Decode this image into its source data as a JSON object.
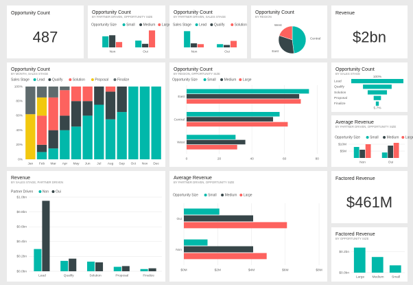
{
  "cards": [
    {
      "title": "Opportunity Count",
      "value": "487"
    },
    {
      "title": "Revenue",
      "value": "$2bn"
    },
    {
      "title": "Factored Revenue",
      "value": "$461M"
    }
  ],
  "chart_data": [
    {
      "type": "bar",
      "title": "Opportunity Count",
      "subtitle": "BY PARTNER DRIVEN, OPPORTUNITY SIZE",
      "legend_title": "Opportunity Size",
      "categories": [
        "Non",
        "Oui"
      ],
      "ylim": [
        0,
        100
      ],
      "series": [
        {
          "name": "Small",
          "color": "#01b8aa",
          "values": [
            62,
            38
          ]
        },
        {
          "name": "Medium",
          "color": "#374649",
          "values": [
            68,
            20
          ]
        },
        {
          "name": "Large",
          "color": "#fd625e",
          "values": [
            30,
            95
          ]
        }
      ]
    },
    {
      "type": "bar",
      "title": "Opportunity Count",
      "subtitle": "BY PARTNER DRIVEN, SALES STAGE",
      "legend_title": "Sales Stage",
      "categories": [
        "Non",
        "Oui"
      ],
      "ylim": [
        0,
        110
      ],
      "series": [
        {
          "name": "Lead",
          "color": "#01b8aa",
          "values": [
            100,
            20
          ]
        },
        {
          "name": "Qualify",
          "color": "#374649",
          "values": [
            25,
            15
          ]
        },
        {
          "name": "Solution",
          "color": "#fd625e",
          "values": [
            20,
            40
          ]
        }
      ]
    },
    {
      "type": "pie",
      "title": "Opportunity Count",
      "subtitle": "BY REGION",
      "categories": [
        "Central",
        "East",
        "West"
      ],
      "values": [
        48,
        32,
        20
      ],
      "colors": [
        "#01b8aa",
        "#374649",
        "#fd625e"
      ]
    },
    {
      "type": "stacked100",
      "title": "Opportunity Count",
      "subtitle": "BY MONTH, SALES STAGE",
      "legend_title": "Sales Stage",
      "categories": [
        "Jan",
        "Feb",
        "Mar",
        "Apr",
        "May",
        "Jun",
        "Jul",
        "Aug",
        "Sep",
        "Oct",
        "Nov",
        "Dec"
      ],
      "ylim": [
        0,
        100
      ],
      "grid": false,
      "yticks": [
        {
          "value": 0,
          "label": "0%"
        },
        {
          "value": 20,
          "label": "20%"
        },
        {
          "value": 40,
          "label": "40%"
        },
        {
          "value": 60,
          "label": "60%"
        },
        {
          "value": 80,
          "label": "80%"
        },
        {
          "value": 100,
          "label": "100%"
        }
      ],
      "series": [
        {
          "name": "Lead",
          "color": "#01b8aa",
          "values": [
            0,
            10,
            15,
            40,
            45,
            60,
            75,
            55,
            65,
            100,
            100,
            100
          ]
        },
        {
          "name": "Qualify",
          "color": "#374649",
          "values": [
            0,
            10,
            25,
            20,
            35,
            20,
            25,
            38,
            35,
            0,
            0,
            0
          ]
        },
        {
          "name": "Solution",
          "color": "#fd625e",
          "values": [
            0,
            40,
            45,
            35,
            20,
            20,
            0,
            7,
            0,
            0,
            0,
            0
          ]
        },
        {
          "name": "Proposal",
          "color": "#f2c80f",
          "values": [
            62,
            25,
            0,
            0,
            0,
            0,
            0,
            0,
            0,
            0,
            0,
            0
          ]
        },
        {
          "name": "Finalize",
          "color": "#5f6b6d",
          "values": [
            38,
            15,
            15,
            5,
            0,
            0,
            0,
            0,
            0,
            0,
            0,
            0
          ]
        }
      ]
    },
    {
      "type": "hbar",
      "title": "Opportunity Count",
      "subtitle": "BY REGION, OPPORTUNITY SIZE",
      "legend_title": "Opportunity Size",
      "categories": [
        "East",
        "Central",
        "West"
      ],
      "xlim": [
        0,
        82
      ],
      "xticks": [
        0,
        20,
        40,
        60,
        80
      ],
      "grid": true,
      "series": [
        {
          "name": "Small",
          "color": "#01b8aa",
          "values": [
            75,
            57,
            30
          ]
        },
        {
          "name": "Medium",
          "color": "#374649",
          "values": [
            69,
            53,
            36
          ]
        },
        {
          "name": "Large",
          "color": "#fd625e",
          "values": [
            70,
            62,
            31
          ]
        }
      ]
    },
    {
      "type": "funnel",
      "title": "Opportunity Count",
      "subtitle": "BY SALES STAGE",
      "categories": [
        "Lead",
        "Qualify",
        "Solution",
        "Proposal",
        "Finalize"
      ],
      "values": [
        100,
        55,
        37,
        14,
        5.7
      ],
      "value_labels": [
        "100%",
        null,
        null,
        null,
        "5.7%"
      ],
      "color": "#01b8aa"
    },
    {
      "type": "bar",
      "title": "Average Revenue",
      "subtitle": "BY PARTNER DRIVEN, OPPORTUNITY SIZE",
      "legend_title": "Opportunity Size",
      "categories": [
        "Non",
        "Oui"
      ],
      "ylim": [
        0,
        12
      ],
      "grid": true,
      "yticks": [
        {
          "value": 5,
          "label": "$5M"
        },
        {
          "value": 10,
          "label": "$10M"
        }
      ],
      "series": [
        {
          "name": "Small",
          "color": "#01b8aa",
          "values": [
            8,
            4
          ]
        },
        {
          "name": "Medium",
          "color": "#374649",
          "values": [
            6,
            9
          ]
        },
        {
          "name": "Large",
          "color": "#fd625e",
          "values": [
            10,
            11
          ]
        }
      ]
    },
    {
      "type": "bar",
      "title": "Revenue",
      "subtitle": "BY SALES STAGE, PARTNER DRIVEN",
      "legend_title": "Partner Driven",
      "categories": [
        "Lead",
        "Qualify",
        "Solution",
        "Proposal",
        "Finalize"
      ],
      "ylim": [
        0,
        1.0
      ],
      "grid": true,
      "yticks": [
        {
          "value": 0,
          "label": "$0.0bn"
        },
        {
          "value": 0.2,
          "label": "$0.2bn"
        },
        {
          "value": 0.4,
          "label": "$0.4bn"
        },
        {
          "value": 0.6,
          "label": "$0.6bn"
        },
        {
          "value": 0.8,
          "label": "$0.8bn"
        },
        {
          "value": 1.0,
          "label": "$1.0bn"
        }
      ],
      "series": [
        {
          "name": "Non",
          "color": "#01b8aa",
          "values": [
            0.3,
            0.14,
            0.13,
            0.06,
            0.03
          ]
        },
        {
          "name": "Oui",
          "color": "#374649",
          "values": [
            0.95,
            0.17,
            0.12,
            0.07,
            0.04
          ]
        }
      ]
    },
    {
      "type": "hbar",
      "title": "Average Revenue",
      "subtitle": "BY PARTNER DRIVEN, OPPORTUNITY SIZE",
      "legend_title": "Opportunity Size",
      "categories": [
        "Oui",
        "Non"
      ],
      "xlim": [
        0,
        8.2
      ],
      "grid": true,
      "xticks": [
        {
          "value": 0,
          "label": "$0M"
        },
        {
          "value": 2,
          "label": "$2M"
        },
        {
          "value": 4,
          "label": "$4M"
        },
        {
          "value": 6,
          "label": "$6M"
        },
        {
          "value": 8,
          "label": "$8M"
        }
      ],
      "series": [
        {
          "name": "Small",
          "color": "#01b8aa",
          "values": [
            2.1,
            1.4
          ]
        },
        {
          "name": "Medium",
          "color": "#374649",
          "values": [
            4.1,
            4.1
          ]
        },
        {
          "name": "Large",
          "color": "#fd625e",
          "values": [
            6.1,
            4.9
          ]
        }
      ]
    },
    {
      "type": "bar",
      "title": "Factored Revenue",
      "subtitle": "BY OPPORTUNITY SIZE",
      "categories": [
        "Large",
        "Medium",
        "Small"
      ],
      "ylim": [
        0,
        0.27
      ],
      "grid": true,
      "yticks": [
        {
          "value": 0,
          "label": "$0.0bn"
        },
        {
          "value": 0.2,
          "label": "$0.2bn"
        }
      ],
      "series": [
        {
          "color": "#01b8aa",
          "values": [
            0.24,
            0.15,
            0.07
          ]
        }
      ]
    }
  ]
}
